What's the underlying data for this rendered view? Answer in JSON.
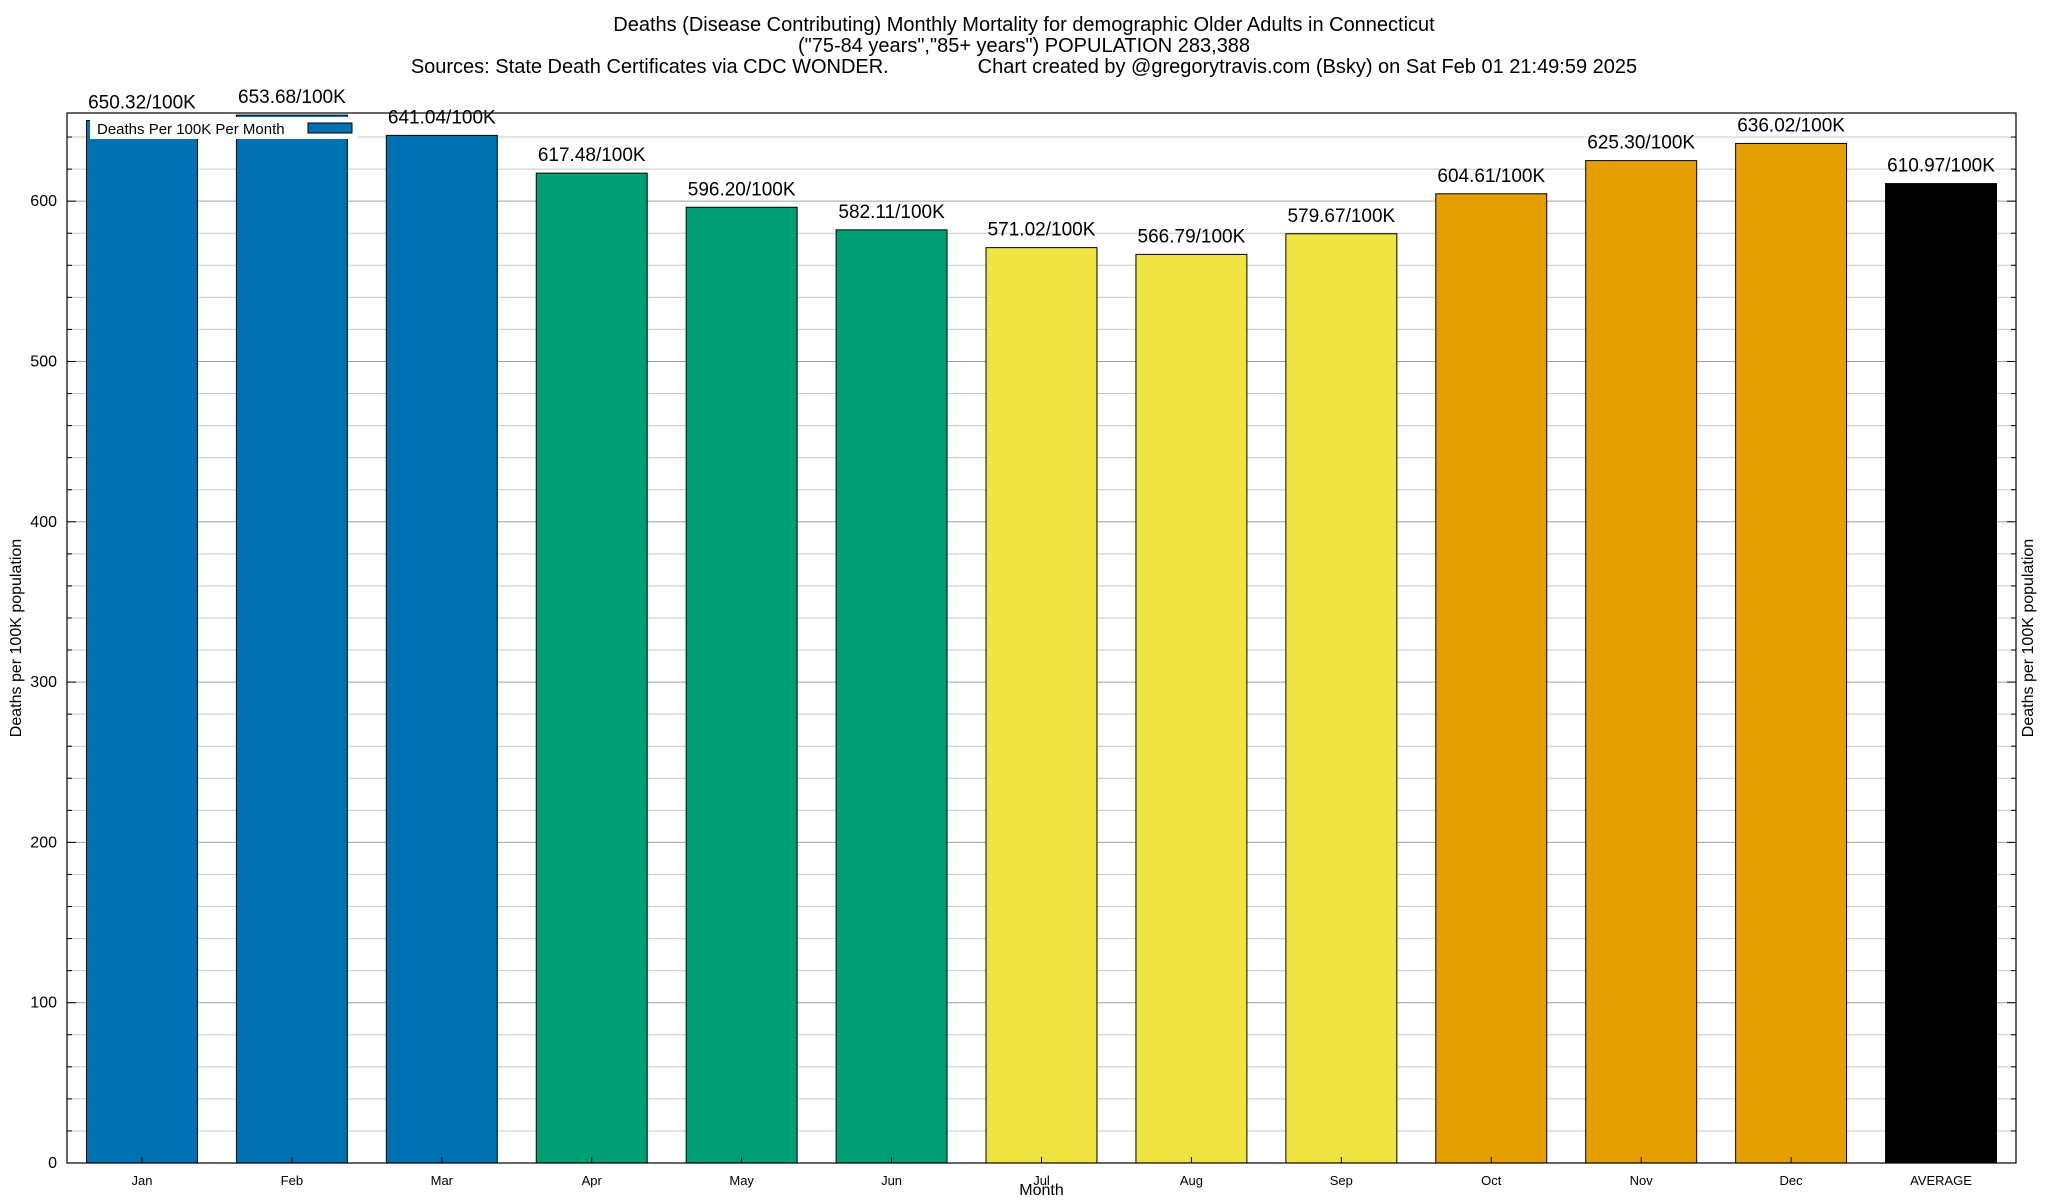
{
  "chart_data": {
    "type": "bar",
    "title_lines": [
      "Deaths (Disease Contributing) Monthly Mortality for demographic Older Adults in Connecticut",
      "(\"75-84 years\",\"85+ years\") POPULATION 283,388",
      "Sources: State Death Certificates via CDC WONDER.                Chart created by @gregorytravis.com (Bsky) on Sat Feb 01 21:49:59 2025"
    ],
    "xlabel": "Month",
    "ylabel": "Deaths per 100K population",
    "y2label": "Deaths per 100K population",
    "ylim": [
      0,
      655
    ],
    "yticks": [
      0,
      100,
      200,
      300,
      400,
      500,
      600
    ],
    "minor_tick_step": 20,
    "grid": true,
    "legend": {
      "position": "top-left",
      "label": "Deaths Per 100K Per Month",
      "swatch_color": "#0072b2"
    },
    "categories": [
      "Jan",
      "Feb",
      "Mar",
      "Apr",
      "May",
      "Jun",
      "Jul",
      "Aug",
      "Sep",
      "Oct",
      "Nov",
      "Dec",
      "AVERAGE"
    ],
    "values": [
      650.32,
      653.68,
      641.04,
      617.48,
      596.2,
      582.11,
      571.02,
      566.79,
      579.67,
      604.61,
      625.3,
      636.02,
      610.97
    ],
    "data_labels": [
      "650.32/100K",
      "653.68/100K",
      "641.04/100K",
      "617.48/100K",
      "596.20/100K",
      "582.11/100K",
      "571.02/100K",
      "566.79/100K",
      "579.67/100K",
      "604.61/100K",
      "625.30/100K",
      "636.02/100K",
      "610.97/100K"
    ],
    "colors": [
      "#0072b2",
      "#0072b2",
      "#0072b2",
      "#009e73",
      "#009e73",
      "#009e73",
      "#f0e442",
      "#f0e442",
      "#f0e442",
      "#e69f00",
      "#e69f00",
      "#e69f00",
      "#000000"
    ]
  }
}
